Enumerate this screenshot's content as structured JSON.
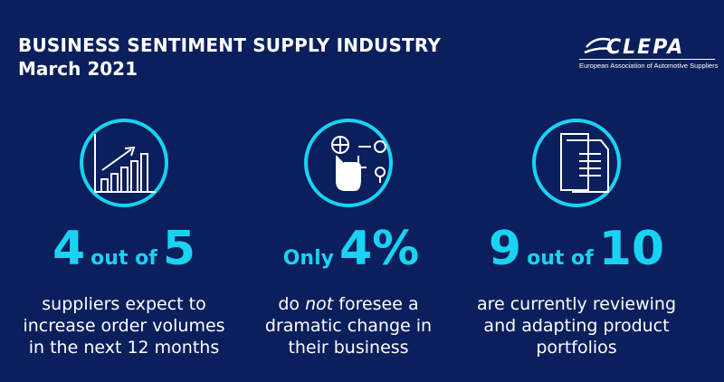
{
  "header": {
    "title": "BUSINESS SENTIMENT SUPPLY INDUSTRY",
    "subtitle": "March 2021"
  },
  "logo": {
    "name": "CLEPA",
    "tagline": "European Association of Automotive Suppliers"
  },
  "stats": [
    {
      "figure": [
        "4",
        "out of",
        "5"
      ],
      "description": [
        "suppliers expect to",
        "increase order volumes",
        "in the next 12 months"
      ]
    },
    {
      "figure": [
        "Only",
        "4%"
      ],
      "description": [
        [
          "do",
          "not",
          "foresee a"
        ],
        "dramatic change in",
        "their business"
      ]
    },
    {
      "figure": [
        "9",
        "out of",
        "10"
      ],
      "description": [
        "are currently reviewing",
        "and adapting product",
        "portfolios"
      ]
    }
  ]
}
